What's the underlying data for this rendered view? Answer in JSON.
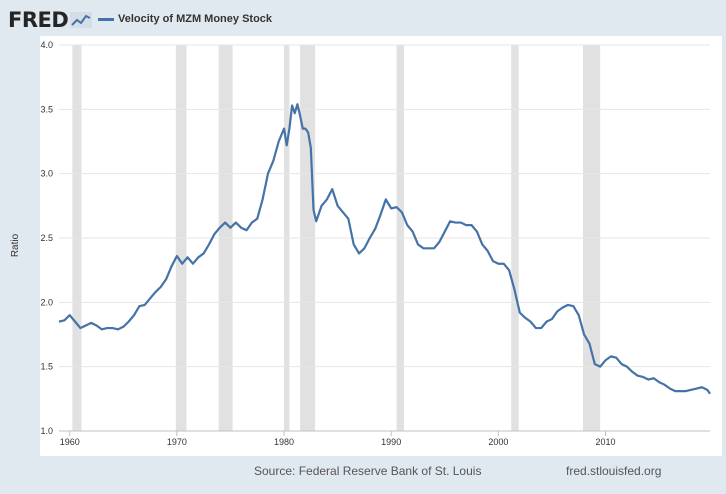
{
  "logo": {
    "text": "FRED"
  },
  "colors": {
    "line": "#4572a7",
    "recession": "#e1e1e1",
    "plot_bg": "#ffffff",
    "frame_bg": "#e1e9f0"
  },
  "footer": {
    "source": "Source: Federal Reserve Bank of St. Louis",
    "site": "fred.stlouisfed.org"
  },
  "chart_data": {
    "type": "line",
    "title": "",
    "legend": [
      "Velocity of MZM Money Stock"
    ],
    "legend_position": "top-left",
    "ylabel": "Ratio",
    "xlabel": "",
    "ylim": [
      1.0,
      4.0
    ],
    "xlim": [
      1959.0,
      2019.75
    ],
    "yticks": [
      "1.0",
      "1.5",
      "2.0",
      "2.5",
      "3.0",
      "3.5",
      "4.0"
    ],
    "xticks": [
      "1960",
      "1970",
      "1980",
      "1990",
      "2000",
      "2010"
    ],
    "grid": "horizontal",
    "recessions": [
      [
        1960.25,
        1961.1
      ],
      [
        1969.9,
        1970.9
      ],
      [
        1973.9,
        1975.2
      ],
      [
        1980.0,
        1980.5
      ],
      [
        1981.5,
        1982.9
      ],
      [
        1990.5,
        1991.2
      ],
      [
        2001.2,
        2001.9
      ],
      [
        2007.9,
        2009.5
      ]
    ],
    "series": [
      {
        "name": "Velocity of MZM Money Stock",
        "x": [
          1959.0,
          1959.5,
          1960.0,
          1960.5,
          1961.0,
          1961.5,
          1962.0,
          1962.5,
          1963.0,
          1963.5,
          1964.0,
          1964.5,
          1965.0,
          1965.5,
          1966.0,
          1966.5,
          1967.0,
          1967.5,
          1968.0,
          1968.5,
          1969.0,
          1969.5,
          1970.0,
          1970.5,
          1971.0,
          1971.5,
          1972.0,
          1972.5,
          1973.0,
          1973.5,
          1974.0,
          1974.5,
          1975.0,
          1975.5,
          1976.0,
          1976.5,
          1977.0,
          1977.5,
          1978.0,
          1978.5,
          1979.0,
          1979.5,
          1980.0,
          1980.25,
          1980.5,
          1980.75,
          1981.0,
          1981.25,
          1981.5,
          1981.75,
          1982.0,
          1982.25,
          1982.5,
          1982.75,
          1983.0,
          1983.5,
          1984.0,
          1984.5,
          1985.0,
          1985.5,
          1986.0,
          1986.5,
          1987.0,
          1987.5,
          1988.0,
          1988.5,
          1989.0,
          1989.5,
          1990.0,
          1990.5,
          1991.0,
          1991.5,
          1992.0,
          1992.5,
          1993.0,
          1993.5,
          1994.0,
          1994.5,
          1995.0,
          1995.5,
          1996.0,
          1996.5,
          1997.0,
          1997.5,
          1998.0,
          1998.5,
          1999.0,
          1999.5,
          2000.0,
          2000.5,
          2001.0,
          2001.5,
          2002.0,
          2002.5,
          2003.0,
          2003.5,
          2004.0,
          2004.5,
          2005.0,
          2005.5,
          2006.0,
          2006.5,
          2007.0,
          2007.5,
          2008.0,
          2008.5,
          2009.0,
          2009.5,
          2010.0,
          2010.5,
          2011.0,
          2011.5,
          2012.0,
          2012.5,
          2013.0,
          2013.5,
          2014.0,
          2014.5,
          2015.0,
          2015.5,
          2016.0,
          2016.5,
          2017.0,
          2017.5,
          2018.0,
          2018.5,
          2019.0,
          2019.5,
          2019.75
        ],
        "values": [
          1.85,
          1.86,
          1.9,
          1.85,
          1.8,
          1.82,
          1.84,
          1.82,
          1.79,
          1.8,
          1.8,
          1.79,
          1.81,
          1.85,
          1.9,
          1.97,
          1.98,
          2.03,
          2.08,
          2.12,
          2.18,
          2.28,
          2.36,
          2.3,
          2.35,
          2.3,
          2.35,
          2.38,
          2.45,
          2.53,
          2.58,
          2.62,
          2.58,
          2.62,
          2.58,
          2.56,
          2.62,
          2.65,
          2.8,
          3.0,
          3.1,
          3.25,
          3.35,
          3.22,
          3.35,
          3.53,
          3.47,
          3.54,
          3.45,
          3.35,
          3.35,
          3.32,
          3.2,
          2.72,
          2.63,
          2.75,
          2.8,
          2.88,
          2.75,
          2.7,
          2.65,
          2.45,
          2.38,
          2.42,
          2.5,
          2.57,
          2.68,
          2.8,
          2.73,
          2.74,
          2.7,
          2.6,
          2.55,
          2.45,
          2.42,
          2.42,
          2.42,
          2.47,
          2.55,
          2.63,
          2.62,
          2.62,
          2.6,
          2.6,
          2.55,
          2.45,
          2.4,
          2.32,
          2.3,
          2.3,
          2.25,
          2.1,
          1.92,
          1.88,
          1.85,
          1.8,
          1.8,
          1.85,
          1.87,
          1.93,
          1.96,
          1.98,
          1.97,
          1.9,
          1.75,
          1.68,
          1.52,
          1.5,
          1.55,
          1.58,
          1.57,
          1.52,
          1.5,
          1.46,
          1.43,
          1.42,
          1.4,
          1.41,
          1.38,
          1.36,
          1.33,
          1.31,
          1.31,
          1.31,
          1.32,
          1.33,
          1.34,
          1.32,
          1.29
        ]
      }
    ]
  }
}
